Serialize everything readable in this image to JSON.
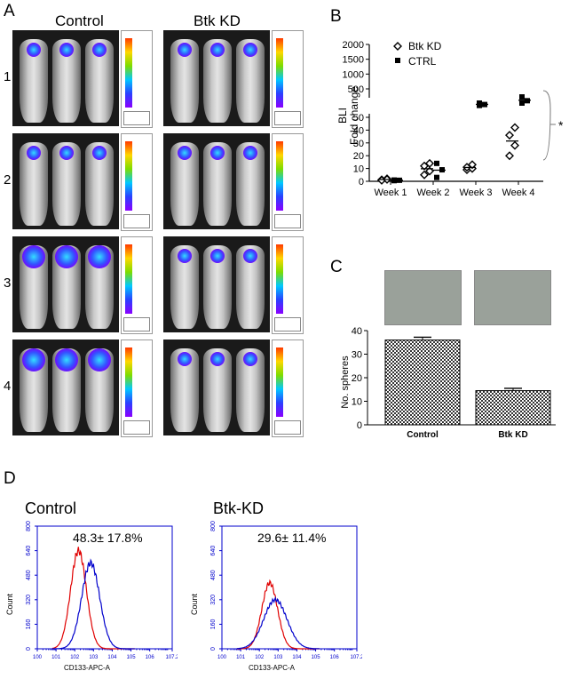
{
  "panel_labels": {
    "a": "A",
    "b": "B",
    "c": "C",
    "d": "D"
  },
  "panel_a": {
    "col_titles": [
      "Control",
      "Btk KD"
    ],
    "rows": [
      "1",
      "2",
      "3",
      "4"
    ]
  },
  "chart_data": [
    {
      "type": "scatter",
      "panel": "B",
      "categories": [
        "Week 1",
        "Week 2",
        "Week 3",
        "Week 4"
      ],
      "ylabel": "BLI\nFold change",
      "y_broken_axis": {
        "lower_ticks": [
          0,
          10,
          20,
          30,
          40,
          50
        ],
        "upper_ticks": [
          500,
          1000,
          1500,
          2000
        ]
      },
      "series": [
        {
          "name": "Btk KD",
          "marker": "open-diamond",
          "points": [
            [
              1.2,
              2.0,
              0.8,
              1.5
            ],
            [
              5,
              8,
              12,
              14
            ],
            [
              9,
              10,
              11,
              13
            ],
            [
              20,
              28,
              36,
              42
            ]
          ],
          "mean": [
            1.4,
            9.8,
            10.8,
            31.5
          ]
        },
        {
          "name": "CTRL",
          "marker": "filled-square",
          "points": [
            [
              0.5,
              0.8,
              1.0
            ],
            [
              3,
              9,
              14
            ],
            [
              200,
              170,
              150
            ],
            [
              330,
              250,
              200
            ]
          ],
          "mean": [
            0.8,
            8.7,
            173,
            260
          ]
        }
      ],
      "significance": "*"
    },
    {
      "type": "bar",
      "panel": "C",
      "categories": [
        "Control",
        "Btk KD"
      ],
      "values": [
        36,
        14.5
      ],
      "errors": [
        1.2,
        1.0
      ],
      "ylabel": "No. spheres",
      "ylim": [
        0,
        40
      ],
      "yticks": [
        0,
        10,
        20,
        30,
        40
      ]
    },
    {
      "type": "line",
      "panel": "D",
      "histograms": [
        {
          "title": "Control",
          "annotation": "48.3± 17.8%"
        },
        {
          "title": "Btk-KD",
          "annotation": "29.6± 11.4%"
        }
      ],
      "xlabel": "CD133-APC-A",
      "ylabel": "Count",
      "yticks": [
        0,
        160,
        320,
        480,
        640,
        800
      ],
      "xticks": [
        "10^0",
        "10^1",
        "10^2",
        "10^3",
        "10^4",
        "10^5",
        "10^6",
        "10^7.2"
      ],
      "series_colors": {
        "isotype": "#e00000",
        "cd133": "#0000cc"
      }
    }
  ]
}
